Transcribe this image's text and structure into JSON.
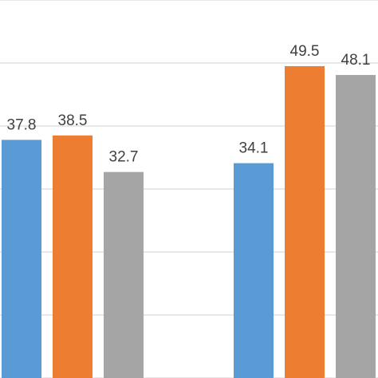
{
  "chart_data": {
    "type": "bar",
    "categories": [
      "",
      ""
    ],
    "series": [
      {
        "values": [
          37.8,
          34.1
        ],
        "color": "#5b9bd5"
      },
      {
        "values": [
          38.5,
          49.5
        ],
        "color": "#ed7d31"
      },
      {
        "values": [
          32.7,
          48.1
        ],
        "color": "#a5a5a5"
      }
    ],
    "data_labels": [
      [
        "37.8",
        "34.1"
      ],
      [
        "38.5",
        "49.5"
      ],
      [
        "32.7",
        "48.1"
      ]
    ],
    "ylim": [
      0,
      60
    ],
    "grid": true,
    "gridline_values": [
      0,
      10,
      20,
      30,
      40,
      50,
      60
    ],
    "title": "",
    "xlabel": "",
    "ylabel": ""
  }
}
